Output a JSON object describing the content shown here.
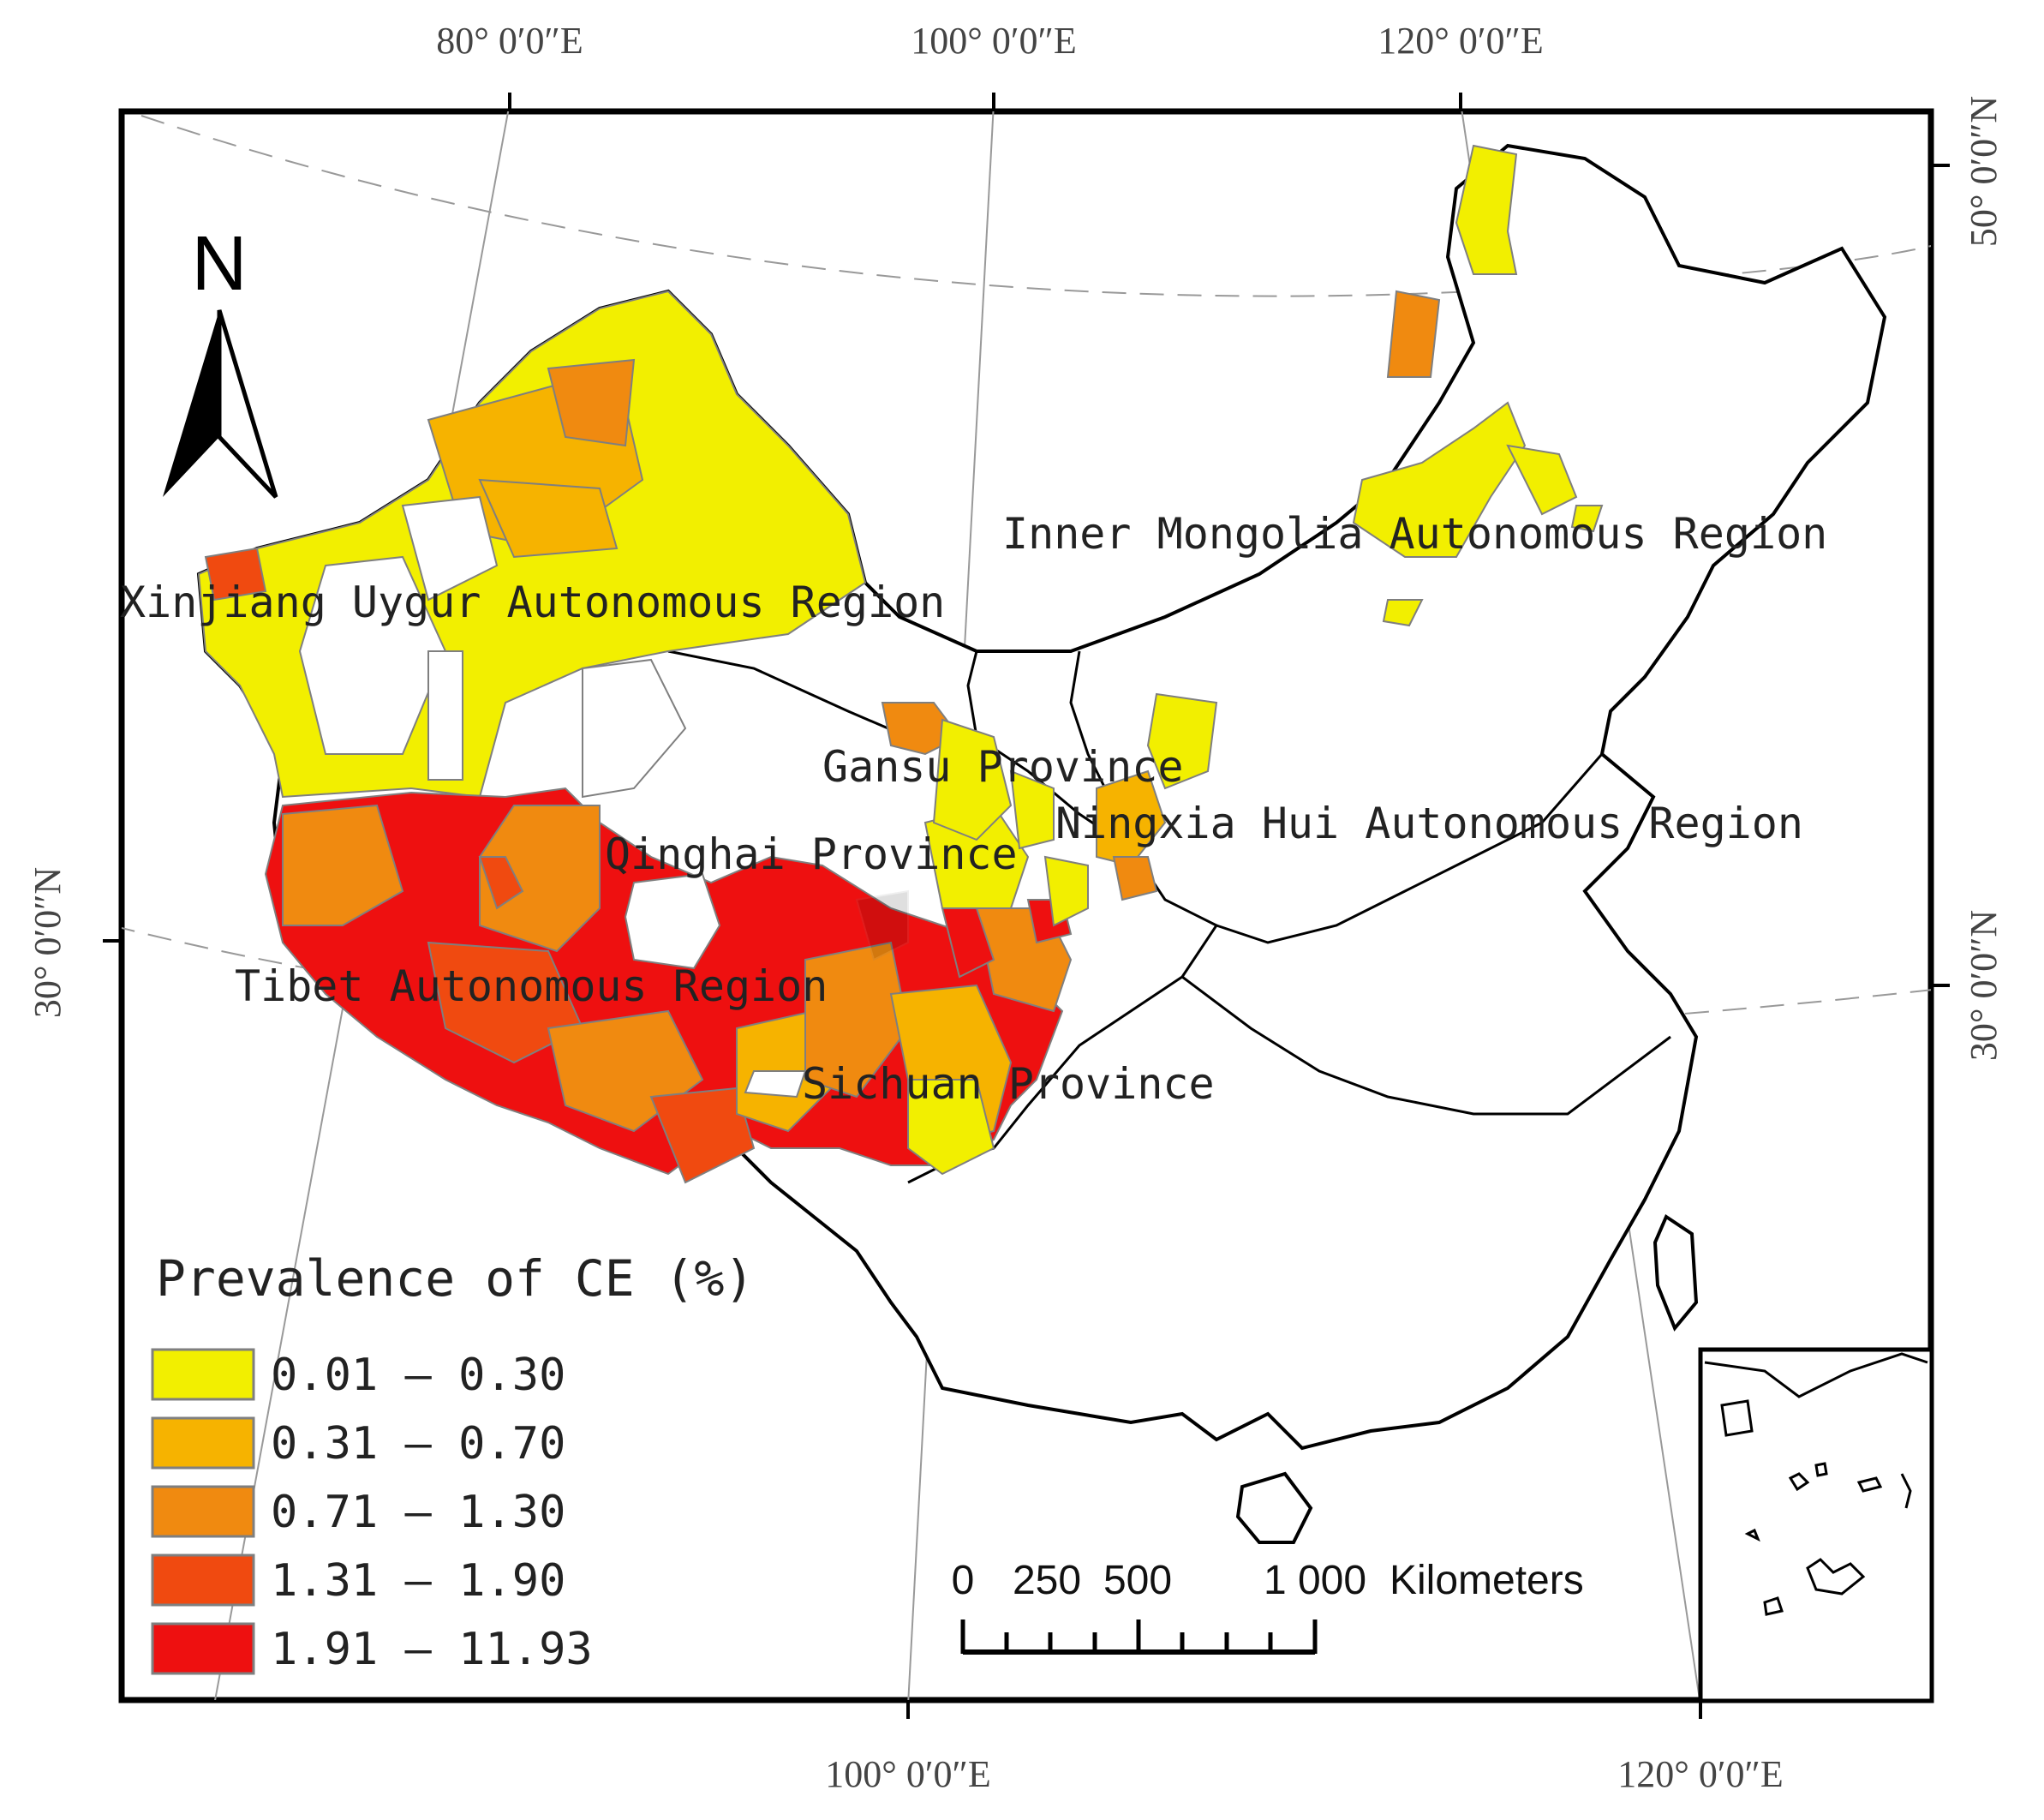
{
  "colors": {
    "class1": "#f2ef00",
    "class2": "#f6b300",
    "class3": "#f08a10",
    "class4": "#f04a10",
    "class5": "#ee1010",
    "boundary": "#000000",
    "county": "#7f7f7f"
  },
  "coordinates": {
    "top": [
      "80° 0′0″E",
      "100° 0′0″E",
      "120° 0′0″E"
    ],
    "bottom": [
      "100° 0′0″E",
      "120° 0′0″E"
    ],
    "left": [
      "30° 0′0″N"
    ],
    "right": [
      "50° 0′0″N",
      "30° 0′0″N"
    ]
  },
  "regions": {
    "xinjiang": "Xinjiang Uygur Autonomous Region",
    "inner_mongolia": "Inner Mongolia Autonomous Region",
    "gansu": "Gansu Province",
    "ningxia": "Ningxia Hui Autonomous Region",
    "qinghai": "Qinghai Province",
    "tibet": "Tibet Autonomous Region",
    "sichuan": "Sichuan Province"
  },
  "north_arrow": {
    "letter": "N",
    "icon": "north-arrow-icon"
  },
  "legend": {
    "title": "Prevalence of CE (%)",
    "classes": [
      {
        "label": "0.01 – 0.30",
        "color": "#f2ef00"
      },
      {
        "label": "0.31 – 0.70",
        "color": "#f6b300"
      },
      {
        "label": "0.71 – 1.30",
        "color": "#f08a10"
      },
      {
        "label": "1.31 – 1.90",
        "color": "#f04a10"
      },
      {
        "label": "1.91 – 11.93",
        "color": "#ee1010"
      }
    ]
  },
  "scale_bar": {
    "ticks": [
      "0",
      "250",
      "500",
      "1 000"
    ],
    "unit": "Kilometers"
  }
}
